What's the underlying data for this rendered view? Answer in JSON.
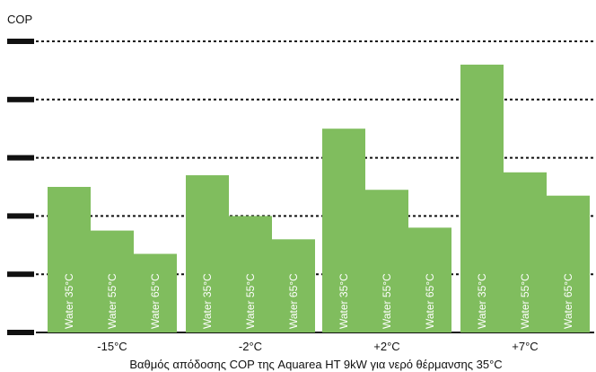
{
  "chart_data": {
    "type": "bar",
    "ylabel": "COP",
    "caption": "Βαθμός απόδοσης COP της Aquarea HT 9kW για νερό θέρμανσης 35°C",
    "ylim": [
      0,
      5
    ],
    "grid": true,
    "categories": [
      "-15°C",
      "-2°C",
      "+2°C",
      "+7°C"
    ],
    "series": [
      {
        "name": "Water 35°C",
        "values": [
          2.5,
          2.7,
          3.5,
          4.6
        ]
      },
      {
        "name": "Water 55°C",
        "values": [
          1.75,
          2.0,
          2.45,
          2.75
        ]
      },
      {
        "name": "Water 65°C",
        "values": [
          1.35,
          1.6,
          1.8,
          2.35
        ]
      }
    ],
    "colors": {
      "bar": "#80bd5e",
      "grid": "#111111",
      "bar_label": "#ffffff"
    }
  }
}
